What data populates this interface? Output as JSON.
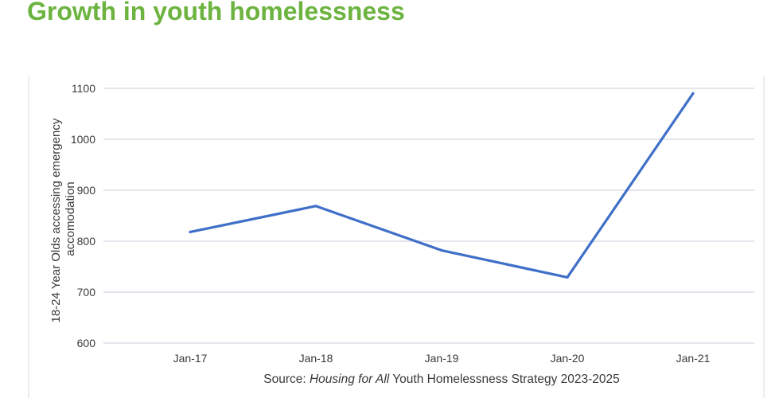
{
  "headline": "Growth in youth homelessness",
  "chart_data": {
    "type": "line",
    "title": "",
    "categories": [
      "Jan-17",
      "Jan-18",
      "Jan-19",
      "Jan-20",
      "Jan-21"
    ],
    "series": [
      {
        "values": [
          818,
          869,
          782,
          729,
          1090
        ]
      }
    ],
    "ylabel_line1": "18-24 Year Olds accessing emergency",
    "ylabel_line2": "accomodation",
    "xlabel": "",
    "ylim": [
      600,
      1100
    ],
    "yticks": [
      600,
      700,
      800,
      900,
      1000,
      1100
    ],
    "grid": true,
    "line_color": "#3f6fc8",
    "grid_color": "#d3d8e0"
  },
  "source": {
    "prefix": "Source: ",
    "title_italic": "Housing for All",
    "suffix": " Youth Homelessness Strategy 2023-2025"
  }
}
